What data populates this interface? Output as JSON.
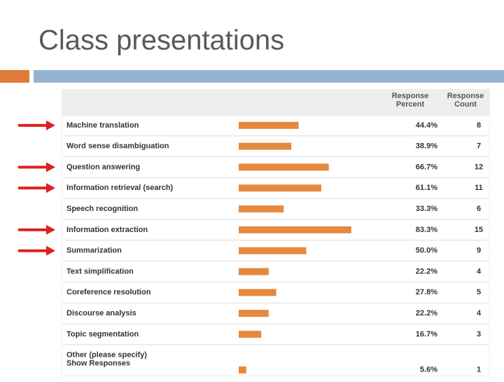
{
  "slide_title": "Class presentations",
  "chart_data": {
    "type": "bar",
    "percent_header": "Response Percent",
    "count_header": "Response Count",
    "categories": [
      "Machine translation",
      "Word sense disambiguation",
      "Question answering",
      "Information retrieval (search)",
      "Speech recognition",
      "Information extraction",
      "Summarization",
      "Text simplification",
      "Coreference resolution",
      "Discourse analysis",
      "Topic segmentation",
      "Other (please specify)"
    ],
    "values": [
      44.4,
      38.9,
      66.7,
      61.1,
      33.3,
      83.3,
      50,
      22.2,
      27.8,
      22.2,
      16.7,
      5.6
    ],
    "value_labels": [
      "44.4%",
      "38.9%",
      "66.7%",
      "61.1%",
      "33.3%",
      "83.3%",
      "50.0%",
      "22.2%",
      "27.8%",
      "22.2%",
      "16.7%",
      "5.6%"
    ],
    "counts": [
      8,
      7,
      12,
      11,
      6,
      15,
      9,
      4,
      5,
      4,
      3,
      1
    ],
    "link_text": "Show Responses",
    "color": "#e5893f"
  }
}
